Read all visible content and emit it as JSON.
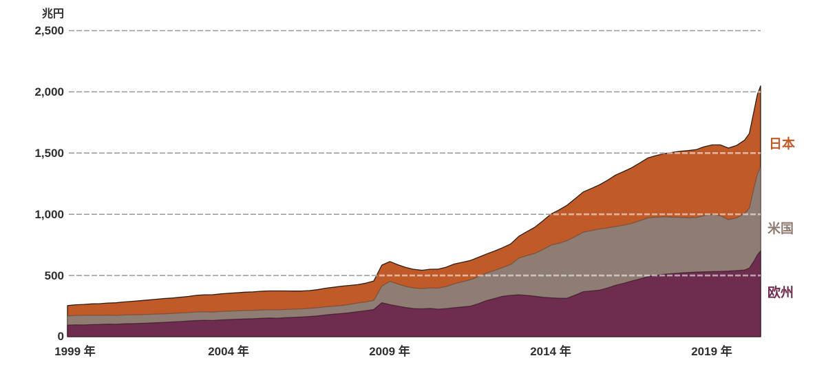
{
  "chart_data": {
    "type": "area",
    "stacked": true,
    "title": "",
    "unit_label": "兆円",
    "xlabel": "",
    "ylabel": "兆円",
    "xlim": [
      1999,
      2020.5
    ],
    "ylim": [
      0,
      2500
    ],
    "grid": "horizontal dashed",
    "legend_position": "inline right-edge labels",
    "gridline_color": "#1c1c1c",
    "gridline_overlay_color": "rgba(255,255,255,0.55)",
    "text_color": "#2e2e2e",
    "x": [
      1999,
      1999.25,
      1999.5,
      1999.75,
      2000,
      2000.25,
      2000.5,
      2000.75,
      2001,
      2001.25,
      2001.5,
      2001.75,
      2002,
      2002.25,
      2002.5,
      2002.75,
      2003,
      2003.25,
      2003.5,
      2003.75,
      2004,
      2004.25,
      2004.5,
      2004.75,
      2005,
      2005.25,
      2005.5,
      2005.75,
      2006,
      2006.25,
      2006.5,
      2006.75,
      2007,
      2007.25,
      2007.5,
      2007.75,
      2008,
      2008.25,
      2008.5,
      2008.75,
      2009,
      2009.25,
      2009.5,
      2009.75,
      2010,
      2010.25,
      2010.5,
      2010.75,
      2011,
      2011.25,
      2011.5,
      2011.75,
      2012,
      2012.25,
      2012.5,
      2012.75,
      2013,
      2013.25,
      2013.5,
      2013.75,
      2014,
      2014.25,
      2014.5,
      2014.75,
      2015,
      2015.25,
      2015.5,
      2015.75,
      2016,
      2016.25,
      2016.5,
      2016.75,
      2017,
      2017.25,
      2017.5,
      2017.75,
      2018,
      2018.25,
      2018.5,
      2018.75,
      2019,
      2019.25,
      2019.5,
      2019.75,
      2020,
      2020.15,
      2020.3,
      2020.4,
      2020.5
    ],
    "series": [
      {
        "id": "europe",
        "name": "欧州",
        "color": "#6E2D4E",
        "stroke": "rgba(48,16,36,0.65)",
        "values": [
          95,
          97,
          96,
          99,
          100,
          103,
          102,
          105,
          107,
          109,
          112,
          114,
          117,
          121,
          124,
          128,
          132,
          134,
          133,
          137,
          140,
          143,
          145,
          147,
          150,
          153,
          151,
          155,
          158,
          161,
          165,
          170,
          178,
          184,
          189,
          196,
          205,
          212,
          222,
          278,
          262,
          250,
          238,
          230,
          228,
          231,
          225,
          230,
          237,
          243,
          250,
          270,
          295,
          312,
          330,
          338,
          342,
          338,
          330,
          322,
          318,
          314,
          315,
          340,
          368,
          374,
          380,
          398,
          420,
          436,
          455,
          472,
          490,
          500,
          510,
          515,
          520,
          524,
          528,
          530,
          532,
          534,
          536,
          540,
          545,
          560,
          620,
          668,
          700
        ]
      },
      {
        "id": "us",
        "name": "米国",
        "color": "#8F7D73",
        "stroke": "rgba(80,60,48,0.5)",
        "values": [
          75,
          77,
          78,
          76,
          74,
          73,
          72,
          73,
          72,
          71,
          70,
          71,
          70,
          69,
          70,
          69,
          70,
          69,
          68,
          69,
          69,
          68,
          69,
          68,
          68,
          67,
          68,
          67,
          67,
          66,
          67,
          66,
          66,
          65,
          66,
          68,
          70,
          72,
          75,
          135,
          190,
          180,
          172,
          168,
          165,
          168,
          172,
          180,
          195,
          205,
          215,
          222,
          225,
          230,
          235,
          252,
          300,
          325,
          350,
          390,
          430,
          450,
          470,
          478,
          485,
          492,
          500,
          490,
          480,
          475,
          470,
          475,
          480,
          476,
          470,
          462,
          455,
          448,
          445,
          460,
          465,
          455,
          420,
          430,
          460,
          490,
          600,
          660,
          685
        ]
      },
      {
        "id": "japan",
        "name": "日本",
        "color": "#C05A28",
        "stroke": "rgba(28,13,6,0.9)",
        "values": [
          84,
          87,
          90,
          93,
          96,
          99,
          103,
          106,
          110,
          114,
          118,
          121,
          125,
          126,
          128,
          132,
          136,
          139,
          142,
          144,
          146,
          148,
          150,
          151,
          153,
          154,
          155,
          152,
          148,
          146,
          145,
          148,
          152,
          155,
          158,
          155,
          150,
          153,
          158,
          172,
          162,
          158,
          155,
          152,
          150,
          152,
          155,
          158,
          162,
          160,
          158,
          157,
          156,
          158,
          162,
          168,
          178,
          195,
          215,
          235,
          255,
          272,
          290,
          310,
          330,
          345,
          360,
          390,
          420,
          438,
          455,
          472,
          490,
          503,
          515,
          528,
          540,
          548,
          555,
          562,
          570,
          578,
          585,
          592,
          600,
          610,
          630,
          650,
          664
        ]
      }
    ],
    "xticks": [
      {
        "x": 1999,
        "label": "1999 年"
      },
      {
        "x": 2004,
        "label": "2004 年"
      },
      {
        "x": 2009,
        "label": "2009 年"
      },
      {
        "x": 2014,
        "label": "2014 年"
      },
      {
        "x": 2019,
        "label": "2019 年"
      }
    ],
    "yticks": [
      {
        "v": 0,
        "label": "0"
      },
      {
        "v": 500,
        "label": "500"
      },
      {
        "v": 1000,
        "label": "1,000"
      },
      {
        "v": 1500,
        "label": "1,500"
      },
      {
        "v": 2000,
        "label": "2,000"
      },
      {
        "v": 2500,
        "label": "2,500"
      }
    ]
  }
}
